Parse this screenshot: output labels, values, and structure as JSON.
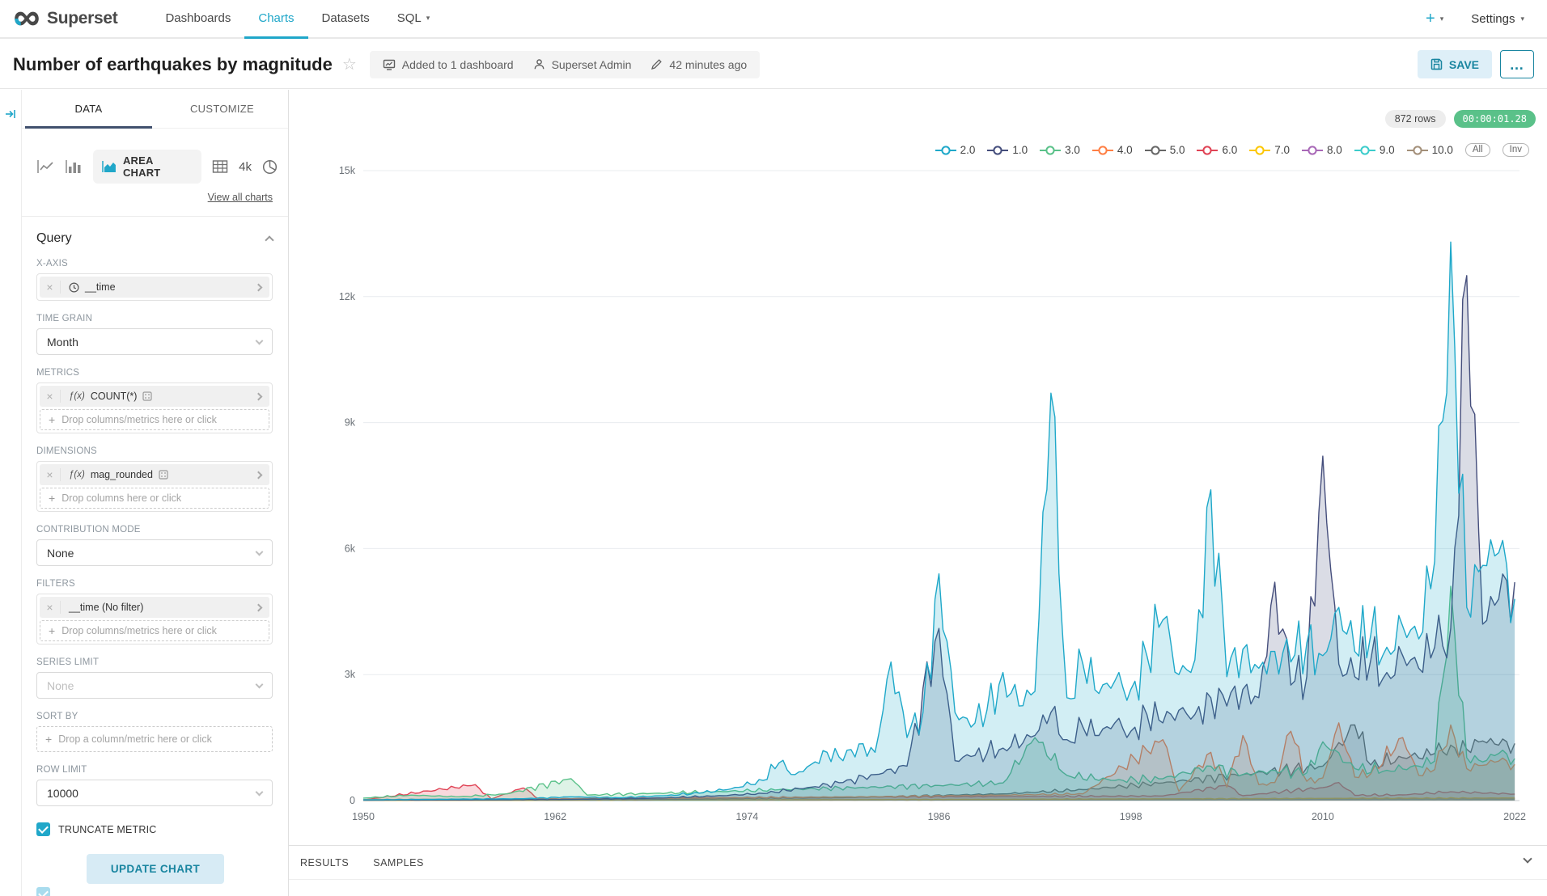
{
  "navbar": {
    "brand": "Superset",
    "items": [
      {
        "label": "Dashboards",
        "active": false,
        "caret": false
      },
      {
        "label": "Charts",
        "active": true,
        "caret": false
      },
      {
        "label": "Datasets",
        "active": false,
        "caret": false
      },
      {
        "label": "SQL",
        "active": false,
        "caret": true
      }
    ],
    "new_button": "+",
    "settings": "Settings"
  },
  "header": {
    "title": "Number of earthquakes by magnitude",
    "meta": {
      "dashboards": "Added to 1 dashboard",
      "owner": "Superset Admin",
      "last_modified": "42 minutes ago"
    },
    "save": "SAVE",
    "more": "…"
  },
  "panel": {
    "tabs": {
      "data": "DATA",
      "customize": "CUSTOMIZE"
    },
    "chart_type": {
      "selected": "AREA CHART",
      "alt": "4k",
      "view_all": "View all charts"
    },
    "query": {
      "title": "Query",
      "x_axis": {
        "label": "X-AXIS",
        "value": "__time"
      },
      "time_grain": {
        "label": "TIME GRAIN",
        "value": "Month"
      },
      "metrics": {
        "label": "METRICS",
        "fx": "ƒ(x)",
        "value": "COUNT(*)",
        "drop": "Drop columns/metrics here or click"
      },
      "dimensions": {
        "label": "DIMENSIONS",
        "fx": "ƒ(x)",
        "value": "mag_rounded",
        "drop": "Drop columns here or click"
      },
      "contribution": {
        "label": "CONTRIBUTION MODE",
        "value": "None"
      },
      "filters": {
        "label": "FILTERS",
        "value": "__time (No filter)",
        "drop": "Drop columns/metrics here or click"
      },
      "series_limit": {
        "label": "SERIES LIMIT",
        "placeholder": "None"
      },
      "sort_by": {
        "label": "SORT BY",
        "drop": "Drop a column/metric here or click"
      },
      "row_limit": {
        "label": "ROW LIMIT",
        "value": "10000"
      },
      "truncate": {
        "label": "TRUNCATE METRIC",
        "checked": true
      },
      "update": "UPDATE CHART"
    }
  },
  "chart": {
    "rows_badge": "872 rows",
    "timer_badge": "00:00:01.28",
    "legend_buttons": {
      "all": "All",
      "inv": "Inv"
    }
  },
  "bottom": {
    "results": "RESULTS",
    "samples": "SAMPLES"
  },
  "chart_data": {
    "type": "area",
    "title": "Number of earthquakes by magnitude",
    "xlabel": "__time",
    "ylabel": "COUNT(*)",
    "xlim": [
      1950,
      2022.3
    ],
    "ylim": [
      0,
      15000
    ],
    "grid": true,
    "legend_position": "top-right",
    "x_axis_ticks": [
      1950,
      1962,
      1974,
      1986,
      1998,
      2010,
      2022
    ],
    "y_axis_ticks": [
      {
        "label": "0",
        "value": 0
      },
      {
        "label": "3k",
        "value": 3000
      },
      {
        "label": "6k",
        "value": 6000
      },
      {
        "label": "9k",
        "value": 9000
      },
      {
        "label": "12k",
        "value": 12000
      },
      {
        "label": "15k",
        "value": 15000
      }
    ],
    "series": [
      {
        "name": "2.0",
        "color": "#1FA8C9",
        "points": [
          [
            1950,
            20
          ],
          [
            1956,
            35
          ],
          [
            1960,
            45
          ],
          [
            1963,
            90
          ],
          [
            1966,
            70
          ],
          [
            1969,
            120
          ],
          [
            1971,
            180
          ],
          [
            1973,
            280
          ],
          [
            1975,
            480
          ],
          [
            1976,
            900
          ],
          [
            1977,
            620
          ],
          [
            1978,
            860
          ],
          [
            1979,
            1150
          ],
          [
            1980,
            950
          ],
          [
            1981,
            1350
          ],
          [
            1982,
            1150
          ],
          [
            1983,
            3300
          ],
          [
            1984,
            1500
          ],
          [
            1985,
            2100
          ],
          [
            1986,
            5400
          ],
          [
            1987,
            2100
          ],
          [
            1988,
            1750
          ],
          [
            1989,
            2150
          ],
          [
            1990,
            3050
          ],
          [
            1991,
            2250
          ],
          [
            1992,
            2600
          ],
          [
            1993,
            9700
          ],
          [
            1994,
            2450
          ],
          [
            1995,
            3250
          ],
          [
            1996,
            2550
          ],
          [
            1997,
            2850
          ],
          [
            1998,
            2650
          ],
          [
            1999,
            3450
          ],
          [
            2000,
            4300
          ],
          [
            2001,
            3000
          ],
          [
            2002,
            3350
          ],
          [
            2003,
            7400
          ],
          [
            2004,
            2950
          ],
          [
            2005,
            3600
          ],
          [
            2006,
            3150
          ],
          [
            2007,
            3550
          ],
          [
            2008,
            3300
          ],
          [
            2009,
            3750
          ],
          [
            2010,
            3450
          ],
          [
            2011,
            4600
          ],
          [
            2012,
            3550
          ],
          [
            2013,
            3950
          ],
          [
            2014,
            3650
          ],
          [
            2015,
            4150
          ],
          [
            2016,
            3850
          ],
          [
            2017,
            5700
          ],
          [
            2018,
            13300
          ],
          [
            2019,
            4600
          ],
          [
            2020,
            5600
          ],
          [
            2021,
            5900
          ],
          [
            2022,
            4800
          ]
        ]
      },
      {
        "name": "1.0",
        "color": "#454E7C",
        "points": [
          [
            1950,
            10
          ],
          [
            1958,
            18
          ],
          [
            1963,
            30
          ],
          [
            1968,
            55
          ],
          [
            1972,
            110
          ],
          [
            1975,
            170
          ],
          [
            1978,
            320
          ],
          [
            1980,
            430
          ],
          [
            1982,
            620
          ],
          [
            1984,
            820
          ],
          [
            1986,
            4100
          ],
          [
            1987,
            950
          ],
          [
            1988,
            1050
          ],
          [
            1990,
            1250
          ],
          [
            1992,
            1550
          ],
          [
            1993,
            2100
          ],
          [
            1994,
            1450
          ],
          [
            1995,
            1750
          ],
          [
            1996,
            1550
          ],
          [
            1997,
            1850
          ],
          [
            1998,
            1650
          ],
          [
            1999,
            2050
          ],
          [
            2000,
            1850
          ],
          [
            2001,
            2150
          ],
          [
            2002,
            2050
          ],
          [
            2003,
            2450
          ],
          [
            2004,
            2250
          ],
          [
            2005,
            2650
          ],
          [
            2006,
            2450
          ],
          [
            2007,
            5200
          ],
          [
            2008,
            2750
          ],
          [
            2009,
            2950
          ],
          [
            2010,
            8200
          ],
          [
            2011,
            3250
          ],
          [
            2012,
            2950
          ],
          [
            2013,
            3350
          ],
          [
            2014,
            3050
          ],
          [
            2015,
            3450
          ],
          [
            2016,
            3150
          ],
          [
            2017,
            3650
          ],
          [
            2018,
            4100
          ],
          [
            2019,
            12500
          ],
          [
            2020,
            4200
          ],
          [
            2021,
            4800
          ],
          [
            2022,
            5200
          ]
        ]
      },
      {
        "name": "3.0",
        "color": "#5AC189",
        "points": [
          [
            1950,
            60
          ],
          [
            1953,
            130
          ],
          [
            1956,
            90
          ],
          [
            1959,
            160
          ],
          [
            1963,
            520
          ],
          [
            1964,
            130
          ],
          [
            1968,
            170
          ],
          [
            1972,
            210
          ],
          [
            1976,
            260
          ],
          [
            1981,
            310
          ],
          [
            1986,
            360
          ],
          [
            1990,
            420
          ],
          [
            1992,
            1500
          ],
          [
            1994,
            600
          ],
          [
            1997,
            480
          ],
          [
            2000,
            520
          ],
          [
            2003,
            820
          ],
          [
            2005,
            620
          ],
          [
            2007,
            720
          ],
          [
            2009,
            660
          ],
          [
            2010,
            1400
          ],
          [
            2012,
            760
          ],
          [
            2014,
            720
          ],
          [
            2016,
            820
          ],
          [
            2017,
            940
          ],
          [
            2018,
            5100
          ],
          [
            2019,
            1020
          ],
          [
            2020,
            920
          ],
          [
            2021,
            1120
          ],
          [
            2022,
            1000
          ]
        ]
      },
      {
        "name": "4.0",
        "color": "#FF7F44",
        "points": [
          [
            1950,
            25
          ],
          [
            1960,
            35
          ],
          [
            1970,
            55
          ],
          [
            1980,
            85
          ],
          [
            1990,
            130
          ],
          [
            1995,
            160
          ],
          [
            2000,
            1450
          ],
          [
            2001,
            220
          ],
          [
            2003,
            1150
          ],
          [
            2004,
            320
          ],
          [
            2005,
            1550
          ],
          [
            2006,
            380
          ],
          [
            2007,
            430
          ],
          [
            2008,
            1650
          ],
          [
            2009,
            460
          ],
          [
            2010,
            540
          ],
          [
            2011,
            1850
          ],
          [
            2012,
            560
          ],
          [
            2013,
            640
          ],
          [
            2015,
            1500
          ],
          [
            2016,
            600
          ],
          [
            2017,
            740
          ],
          [
            2018,
            1800
          ],
          [
            2019,
            760
          ],
          [
            2020,
            840
          ],
          [
            2021,
            940
          ],
          [
            2022,
            860
          ]
        ]
      },
      {
        "name": "5.0",
        "color": "#666666",
        "points": [
          [
            1950,
            12
          ],
          [
            1970,
            35
          ],
          [
            1980,
            70
          ],
          [
            1990,
            160
          ],
          [
            1995,
            260
          ],
          [
            2000,
            420
          ],
          [
            2005,
            620
          ],
          [
            2010,
            820
          ],
          [
            2012,
            1800
          ],
          [
            2013,
            850
          ],
          [
            2015,
            1020
          ],
          [
            2017,
            1120
          ],
          [
            2018,
            1320
          ],
          [
            2019,
            1220
          ],
          [
            2020,
            1420
          ],
          [
            2021,
            1320
          ],
          [
            2022,
            1360
          ]
        ]
      },
      {
        "name": "6.0",
        "color": "#E04355",
        "points": [
          [
            1950,
            15
          ],
          [
            1957,
            380
          ],
          [
            1958,
            40
          ],
          [
            1960,
            300
          ],
          [
            1961,
            40
          ],
          [
            1965,
            55
          ],
          [
            1972,
            70
          ],
          [
            1980,
            85
          ],
          [
            1990,
            95
          ],
          [
            2000,
            110
          ],
          [
            2004,
            360
          ],
          [
            2005,
            115
          ],
          [
            2010,
            310
          ],
          [
            2011,
            430
          ],
          [
            2012,
            125
          ],
          [
            2015,
            135
          ],
          [
            2018,
            210
          ],
          [
            2022,
            155
          ]
        ]
      },
      {
        "name": "7.0",
        "color": "#FCC700",
        "points": [
          [
            1950,
            6
          ],
          [
            1960,
            10
          ],
          [
            1970,
            16
          ],
          [
            1980,
            22
          ],
          [
            1990,
            30
          ],
          [
            2000,
            42
          ],
          [
            2010,
            52
          ],
          [
            2022,
            62
          ]
        ]
      },
      {
        "name": "8.0",
        "color": "#A868B7",
        "points": [
          [
            1950,
            5
          ],
          [
            1960,
            9
          ],
          [
            1970,
            13
          ],
          [
            1980,
            19
          ],
          [
            1990,
            26
          ],
          [
            2000,
            36
          ],
          [
            2010,
            46
          ],
          [
            2022,
            56
          ]
        ]
      },
      {
        "name": "9.0",
        "color": "#3CCCCB",
        "points": [
          [
            1950,
            4
          ],
          [
            1960,
            7
          ],
          [
            1970,
            10
          ],
          [
            1980,
            14
          ],
          [
            1990,
            20
          ],
          [
            2000,
            28
          ],
          [
            2010,
            36
          ],
          [
            2022,
            44
          ]
        ]
      },
      {
        "name": "10.0",
        "color": "#A38F79",
        "points": [
          [
            1950,
            3
          ],
          [
            1960,
            5
          ],
          [
            1970,
            8
          ],
          [
            1980,
            11
          ],
          [
            1990,
            15
          ],
          [
            2000,
            21
          ],
          [
            2010,
            28
          ],
          [
            2022,
            34
          ]
        ]
      }
    ]
  }
}
